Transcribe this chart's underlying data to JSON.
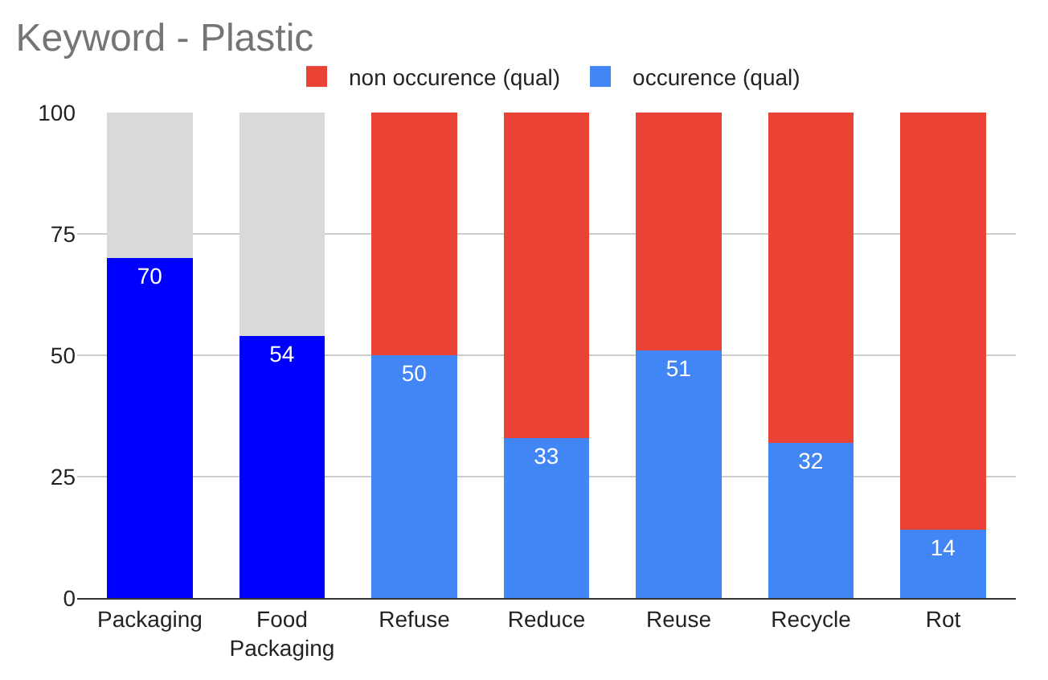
{
  "chart_data": {
    "type": "bar",
    "title": "Keyword - Plastic",
    "stacked": true,
    "categories": [
      "Packaging",
      "Food Packaging",
      "Refuse",
      "Reduce",
      "Reuse",
      "Recycle",
      "Rot"
    ],
    "series": [
      {
        "name": "occurence (qual)",
        "color": "#4285f4",
        "colors": [
          "#0000ff",
          "#0000ff",
          "#4285f4",
          "#4285f4",
          "#4285f4",
          "#4285f4",
          "#4285f4"
        ],
        "values": [
          70,
          54,
          50,
          33,
          51,
          32,
          14
        ],
        "value_labels": [
          "70",
          "54",
          "50",
          "33",
          "51",
          "32",
          "14"
        ]
      },
      {
        "name": "non occurence (qual)",
        "color": "#ea4335",
        "colors": [
          "#d9d9d9",
          "#d9d9d9",
          "#ea4335",
          "#ea4335",
          "#ea4335",
          "#ea4335",
          "#ea4335"
        ],
        "values": [
          30,
          46,
          50,
          67,
          49,
          68,
          86
        ]
      }
    ],
    "ylim": [
      0,
      100
    ],
    "yticks": [
      0,
      25,
      50,
      75,
      100
    ],
    "grid": "y",
    "legend": "top"
  }
}
